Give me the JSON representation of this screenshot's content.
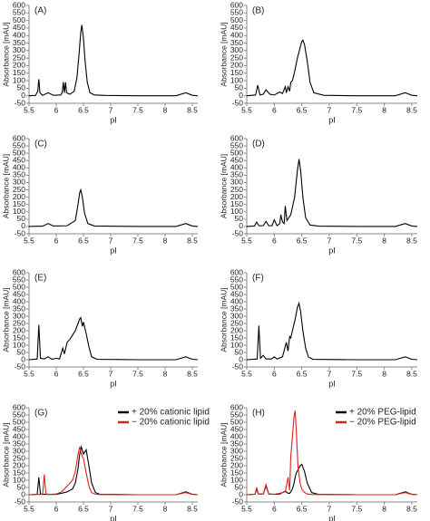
{
  "chart_data": [
    {
      "type": "line",
      "label": "(A)",
      "xlabel": "pI",
      "ylabel": "Absorbance [mAU]",
      "xlim": [
        5.5,
        8.6
      ],
      "ylim": [
        -50,
        600
      ],
      "xticks": [
        5.5,
        6,
        6.5,
        7,
        7.5,
        8,
        8.5
      ],
      "yticks": [
        -50,
        0,
        50,
        100,
        150,
        200,
        250,
        300,
        350,
        400,
        450,
        500,
        550,
        600
      ],
      "x": [
        5.5,
        5.62,
        5.66,
        5.68,
        5.7,
        5.75,
        5.85,
        5.95,
        6.08,
        6.11,
        6.13,
        6.15,
        6.17,
        6.19,
        6.25,
        6.33,
        6.38,
        6.42,
        6.45,
        6.47,
        6.5,
        6.53,
        6.57,
        6.62,
        6.7,
        6.9,
        7.5,
        8.2,
        8.38,
        8.5,
        8.6
      ],
      "series": [
        {
          "color": "#000000",
          "values": [
            0,
            2,
            30,
            110,
            20,
            3,
            20,
            3,
            5,
            20,
            90,
            20,
            90,
            20,
            10,
            30,
            120,
            280,
            420,
            470,
            380,
            230,
            90,
            20,
            5,
            2,
            0,
            0,
            20,
            3,
            0
          ]
        }
      ]
    },
    {
      "type": "line",
      "label": "(B)",
      "xlabel": "pI",
      "ylabel": "Absorbance [mAU]",
      "xlim": [
        5.5,
        8.6
      ],
      "ylim": [
        -50,
        600
      ],
      "xticks": [
        5.5,
        6,
        6.5,
        7,
        7.5,
        8,
        8.5
      ],
      "yticks": [
        -50,
        0,
        50,
        100,
        150,
        200,
        250,
        300,
        350,
        400,
        450,
        500,
        550,
        600
      ],
      "x": [
        5.5,
        5.66,
        5.7,
        5.74,
        5.8,
        5.85,
        5.92,
        6.0,
        6.1,
        6.15,
        6.2,
        6.22,
        6.25,
        6.28,
        6.3,
        6.33,
        6.37,
        6.42,
        6.47,
        6.5,
        6.52,
        6.55,
        6.6,
        6.65,
        6.72,
        6.9,
        7.5,
        8.2,
        8.38,
        8.5,
        8.6
      ],
      "series": [
        {
          "color": "#000000",
          "values": [
            0,
            5,
            70,
            5,
            10,
            40,
            10,
            5,
            25,
            15,
            60,
            20,
            60,
            30,
            90,
            100,
            160,
            250,
            320,
            360,
            370,
            340,
            230,
            90,
            20,
            3,
            0,
            0,
            20,
            3,
            0
          ]
        }
      ]
    },
    {
      "type": "line",
      "label": "(C)",
      "xlabel": "pI",
      "ylabel": "Absorbance [mAU]",
      "xlim": [
        5.5,
        8.6
      ],
      "ylim": [
        -50,
        600
      ],
      "xticks": [
        5.5,
        6,
        6.5,
        7,
        7.5,
        8,
        8.5
      ],
      "yticks": [
        -50,
        0,
        50,
        100,
        150,
        200,
        250,
        300,
        350,
        400,
        450,
        500,
        550,
        600
      ],
      "x": [
        5.5,
        5.75,
        5.85,
        5.95,
        6.2,
        6.35,
        6.4,
        6.43,
        6.45,
        6.48,
        6.52,
        6.58,
        6.7,
        7.5,
        8.2,
        8.38,
        8.5,
        8.6
      ],
      "series": [
        {
          "color": "#000000",
          "values": [
            0,
            2,
            20,
            3,
            5,
            40,
            150,
            230,
            250,
            200,
            90,
            20,
            3,
            0,
            0,
            20,
            3,
            0
          ]
        }
      ]
    },
    {
      "type": "line",
      "label": "(D)",
      "xlabel": "pI",
      "ylabel": "Absorbance [mAU]",
      "xlim": [
        5.5,
        8.6
      ],
      "ylim": [
        -50,
        600
      ],
      "xticks": [
        5.5,
        6,
        6.5,
        7,
        7.5,
        8,
        8.5
      ],
      "yticks": [
        -50,
        0,
        50,
        100,
        150,
        200,
        250,
        300,
        350,
        400,
        450,
        500,
        550,
        600
      ],
      "x": [
        5.5,
        5.64,
        5.68,
        5.72,
        5.8,
        5.85,
        5.9,
        5.96,
        6.0,
        6.05,
        6.1,
        6.12,
        6.15,
        6.18,
        6.2,
        6.23,
        6.3,
        6.37,
        6.42,
        6.45,
        6.48,
        6.52,
        6.57,
        6.65,
        6.8,
        7.5,
        8.2,
        8.38,
        8.5,
        8.6
      ],
      "series": [
        {
          "color": "#000000",
          "values": [
            0,
            3,
            30,
            5,
            5,
            35,
            5,
            5,
            45,
            5,
            20,
            80,
            30,
            20,
            140,
            40,
            80,
            200,
            380,
            460,
            380,
            200,
            60,
            10,
            2,
            0,
            0,
            20,
            3,
            0
          ]
        }
      ]
    },
    {
      "type": "line",
      "label": "(E)",
      "xlabel": "pI",
      "ylabel": "Absorbance [mAU]",
      "xlim": [
        5.5,
        8.6
      ],
      "ylim": [
        -50,
        600
      ],
      "xticks": [
        5.5,
        6,
        6.5,
        7,
        7.5,
        8,
        8.5
      ],
      "yticks": [
        -50,
        0,
        50,
        100,
        150,
        200,
        250,
        300,
        350,
        400,
        450,
        500,
        550,
        600
      ],
      "x": [
        5.5,
        5.65,
        5.68,
        5.71,
        5.78,
        5.85,
        5.92,
        6.0,
        6.06,
        6.12,
        6.15,
        6.2,
        6.25,
        6.3,
        6.35,
        6.4,
        6.43,
        6.45,
        6.48,
        6.5,
        6.55,
        6.6,
        6.65,
        6.75,
        7.5,
        8.2,
        8.38,
        8.5,
        8.6
      ],
      "series": [
        {
          "color": "#000000",
          "values": [
            0,
            5,
            240,
            10,
            5,
            20,
            3,
            10,
            5,
            80,
            40,
            120,
            140,
            170,
            200,
            250,
            280,
            290,
            230,
            260,
            180,
            90,
            20,
            3,
            0,
            0,
            20,
            3,
            0
          ]
        }
      ]
    },
    {
      "type": "line",
      "label": "(F)",
      "xlabel": "pI",
      "ylabel": "Absorbance [mAU]",
      "xlim": [
        5.5,
        8.6
      ],
      "ylim": [
        -50,
        600
      ],
      "xticks": [
        5.5,
        6,
        6.5,
        7,
        7.5,
        8,
        8.5
      ],
      "yticks": [
        -50,
        0,
        50,
        100,
        150,
        200,
        250,
        300,
        350,
        400,
        450,
        500,
        550,
        600
      ],
      "x": [
        5.5,
        5.69,
        5.72,
        5.75,
        5.8,
        5.85,
        5.95,
        6.0,
        6.05,
        6.15,
        6.22,
        6.25,
        6.28,
        6.3,
        6.33,
        6.38,
        6.42,
        6.45,
        6.48,
        6.52,
        6.57,
        6.62,
        6.7,
        7.5,
        8.2,
        8.38,
        8.5,
        8.6
      ],
      "series": [
        {
          "color": "#000000",
          "values": [
            0,
            5,
            235,
            10,
            30,
            5,
            5,
            20,
            5,
            20,
            120,
            60,
            160,
            150,
            200,
            280,
            360,
            390,
            330,
            200,
            80,
            20,
            3,
            0,
            0,
            20,
            3,
            0
          ]
        }
      ]
    },
    {
      "type": "line",
      "label": "(G)",
      "xlabel": "pI",
      "ylabel": "Absorbance [mAU]",
      "xlim": [
        5.5,
        8.6
      ],
      "ylim": [
        -50,
        600
      ],
      "xticks": [
        5.5,
        6,
        6.5,
        7,
        7.5,
        8,
        8.5
      ],
      "yticks": [
        -50,
        0,
        50,
        100,
        150,
        200,
        250,
        300,
        350,
        400,
        450,
        500,
        550,
        600
      ],
      "legend": "upper right",
      "x": [
        5.5,
        5.65,
        5.68,
        5.71,
        5.75,
        5.78,
        5.81,
        5.9,
        6.0,
        6.1,
        6.2,
        6.25,
        6.3,
        6.35,
        6.4,
        6.43,
        6.46,
        6.5,
        6.55,
        6.6,
        6.65,
        6.72,
        6.8,
        7.5,
        8.2,
        8.38,
        8.5,
        8.6
      ],
      "series": [
        {
          "name": "+ 20% cationic lipid",
          "color": "#000000",
          "values": [
            0,
            3,
            120,
            5,
            3,
            3,
            3,
            2,
            3,
            10,
            20,
            30,
            40,
            80,
            180,
            280,
            330,
            280,
            310,
            200,
            80,
            15,
            3,
            0,
            0,
            20,
            3,
            0
          ]
        },
        {
          "name": "− 20% cationic lipid",
          "color": "#e0201b",
          "values": [
            0,
            2,
            2,
            2,
            3,
            140,
            5,
            3,
            5,
            20,
            60,
            80,
            100,
            160,
            280,
            330,
            280,
            250,
            150,
            60,
            15,
            3,
            1,
            0,
            0,
            15,
            2,
            0
          ]
        }
      ]
    },
    {
      "type": "line",
      "label": "(H)",
      "xlabel": "pI",
      "ylabel": "Absorbance [mAU]",
      "xlim": [
        5.5,
        8.6
      ],
      "ylim": [
        -50,
        600
      ],
      "xticks": [
        5.5,
        6,
        6.5,
        7,
        7.5,
        8,
        8.5
      ],
      "yticks": [
        -50,
        0,
        50,
        100,
        150,
        200,
        250,
        300,
        350,
        400,
        450,
        500,
        550,
        600
      ],
      "legend": "upper right",
      "x": [
        5.5,
        5.65,
        5.68,
        5.71,
        5.8,
        5.85,
        5.9,
        6.0,
        6.1,
        6.2,
        6.25,
        6.28,
        6.3,
        6.33,
        6.36,
        6.38,
        6.4,
        6.43,
        6.47,
        6.5,
        6.55,
        6.6,
        6.68,
        6.8,
        7.5,
        8.2,
        8.38,
        8.5,
        8.6
      ],
      "series": [
        {
          "name": "+ 20% PEG-lipid",
          "color": "#000000",
          "values": [
            0,
            3,
            40,
            5,
            5,
            60,
            5,
            3,
            5,
            25,
            10,
            10,
            20,
            40,
            80,
            120,
            150,
            170,
            200,
            210,
            160,
            80,
            15,
            3,
            0,
            0,
            20,
            3,
            0
          ]
        },
        {
          "name": "− 20% PEG-lipid",
          "color": "#e0201b",
          "values": [
            0,
            3,
            50,
            5,
            5,
            70,
            5,
            3,
            10,
            20,
            120,
            30,
            260,
            400,
            540,
            580,
            450,
            200,
            80,
            40,
            15,
            5,
            2,
            1,
            0,
            0,
            15,
            2,
            0
          ]
        }
      ]
    }
  ]
}
